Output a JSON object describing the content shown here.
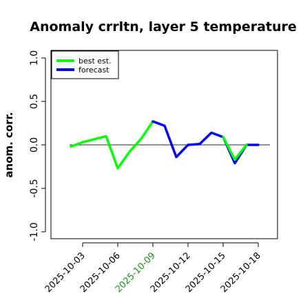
{
  "chart_data": {
    "type": "line",
    "title": "Anomaly crrltn, layer 5 temperature",
    "xlabel": "",
    "ylabel": "anom. corr.",
    "ylim": [
      -1.0,
      1.0
    ],
    "yticks": [
      "-1.0",
      "-0.5",
      "0.0",
      "0.5",
      "1.0"
    ],
    "x_tick_labels": [
      "2025-10-03",
      "2025-10-06",
      "2025-10-09",
      "2025-10-12",
      "2025-10-15",
      "2025-10-18"
    ],
    "highlight_tick": "2025-10-09",
    "highlight_color": "#228B22",
    "legend_position": "top-left",
    "reference_line": 0.0,
    "series": [
      {
        "name": "best est.",
        "color": "#00FF00",
        "x": [
          "2025-10-02",
          "2025-10-03",
          "2025-10-05",
          "2025-10-06",
          "2025-10-07",
          "2025-10-08",
          "2025-10-09"
        ],
        "values": [
          -0.02,
          0.03,
          0.1,
          -0.27,
          -0.08,
          0.07,
          0.27
        ]
      },
      {
        "name": "forecast",
        "color": "#0000FF",
        "x": [
          "2025-10-09",
          "2025-10-10",
          "2025-10-11",
          "2025-10-12",
          "2025-10-13",
          "2025-10-14",
          "2025-10-15",
          "2025-10-16",
          "2025-10-17",
          "2025-10-18"
        ],
        "values": [
          0.27,
          0.22,
          -0.14,
          0.0,
          0.01,
          0.14,
          0.09,
          -0.21,
          0.0,
          0.0
        ]
      },
      {
        "name": "",
        "color": "#00FF00",
        "x": [
          "2025-10-15",
          "2025-10-16",
          "2025-10-17"
        ],
        "values": [
          0.09,
          -0.17,
          0.0
        ]
      }
    ]
  }
}
